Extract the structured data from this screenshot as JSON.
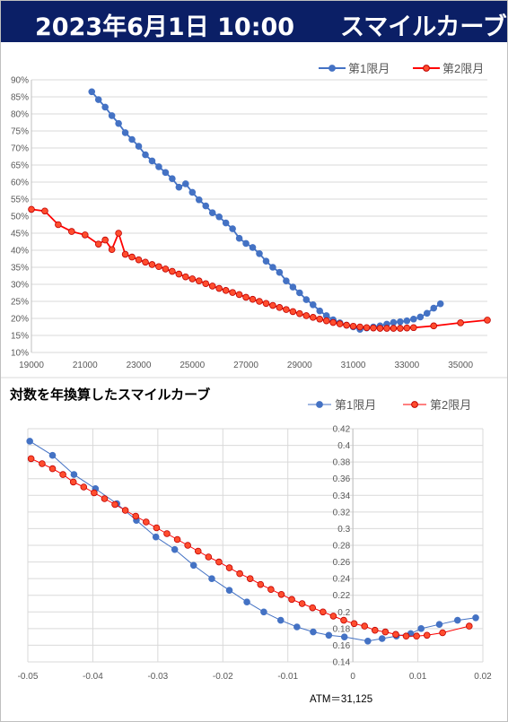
{
  "header": {
    "datetime": "2023年6月1日 10:00",
    "title": "スマイルカーブ"
  },
  "colors": {
    "series1": "#4472c4",
    "series2": "#ff0000",
    "series2_fill": "#ff4d2e",
    "header_bg": "#0b1f66"
  },
  "chart_data": [
    {
      "type": "line",
      "title": "",
      "xlabel": "",
      "ylabel": "",
      "xlim": [
        19000,
        36000
      ],
      "ylim": [
        0.1,
        0.9
      ],
      "x_ticks": [
        19000,
        21000,
        23000,
        25000,
        27000,
        29000,
        31000,
        33000,
        35000
      ],
      "y_ticks": [
        "10%",
        "15%",
        "20%",
        "25%",
        "30%",
        "35%",
        "40%",
        "45%",
        "50%",
        "55%",
        "60%",
        "65%",
        "70%",
        "75%",
        "80%",
        "85%",
        "90%"
      ],
      "legend": "top-right",
      "grid": "horizontal",
      "series": [
        {
          "name": "第1限月",
          "x": [
            21250,
            21500,
            21750,
            22000,
            22250,
            22500,
            22750,
            23000,
            23250,
            23500,
            23750,
            24000,
            24250,
            24500,
            24750,
            25000,
            25250,
            25500,
            25750,
            26000,
            26250,
            26500,
            26750,
            27000,
            27250,
            27500,
            27750,
            28000,
            28250,
            28500,
            28750,
            29000,
            29250,
            29500,
            29750,
            30000,
            30250,
            30500,
            30750,
            31000,
            31250,
            31500,
            31750,
            32000,
            32250,
            32500,
            32750,
            33000,
            33250,
            33500,
            33750,
            34000,
            34250
          ],
          "y": [
            0.865,
            0.842,
            0.82,
            0.795,
            0.772,
            0.745,
            0.725,
            0.705,
            0.68,
            0.662,
            0.645,
            0.628,
            0.61,
            0.585,
            0.595,
            0.57,
            0.548,
            0.53,
            0.51,
            0.498,
            0.48,
            0.463,
            0.435,
            0.42,
            0.408,
            0.39,
            0.368,
            0.35,
            0.335,
            0.31,
            0.292,
            0.275,
            0.255,
            0.24,
            0.222,
            0.208,
            0.196,
            0.187,
            0.18,
            0.175,
            0.168,
            0.172,
            0.175,
            0.178,
            0.183,
            0.188,
            0.19,
            0.193,
            0.198,
            0.204,
            0.215,
            0.23,
            0.243
          ]
        },
        {
          "name": "第2限月",
          "x": [
            19000,
            19500,
            20000,
            20500,
            21000,
            21500,
            21750,
            22000,
            22250,
            22500,
            22750,
            23000,
            23250,
            23500,
            23750,
            24000,
            24250,
            24500,
            24750,
            25000,
            25250,
            25500,
            25750,
            26000,
            26250,
            26500,
            26750,
            27000,
            27250,
            27500,
            27750,
            28000,
            28250,
            28500,
            28750,
            29000,
            29250,
            29500,
            29750,
            30000,
            30250,
            30500,
            30750,
            31000,
            31250,
            31500,
            31750,
            32000,
            32250,
            32500,
            32750,
            33000,
            33250,
            34000,
            35000,
            36000
          ],
          "y": [
            0.52,
            0.515,
            0.475,
            0.455,
            0.445,
            0.418,
            0.43,
            0.402,
            0.45,
            0.388,
            0.38,
            0.372,
            0.365,
            0.358,
            0.352,
            0.345,
            0.338,
            0.33,
            0.322,
            0.316,
            0.31,
            0.302,
            0.295,
            0.288,
            0.282,
            0.276,
            0.27,
            0.262,
            0.256,
            0.25,
            0.244,
            0.238,
            0.232,
            0.226,
            0.22,
            0.214,
            0.208,
            0.203,
            0.198,
            0.193,
            0.188,
            0.184,
            0.18,
            0.177,
            0.175,
            0.173,
            0.172,
            0.171,
            0.171,
            0.171,
            0.171,
            0.172,
            0.173,
            0.178,
            0.187,
            0.195
          ]
        }
      ]
    },
    {
      "type": "scatter",
      "title": "対数を年換算したスマイルカーブ",
      "xlabel": "",
      "ylabel": "",
      "xlim": [
        -0.05,
        0.02
      ],
      "ylim": [
        0.14,
        0.42
      ],
      "x_ticks": [
        "-0.05",
        "-0.04",
        "-0.03",
        "-0.02",
        "-0.01",
        "0",
        "0.01",
        "0.02"
      ],
      "y_ticks": [
        "0.14",
        "0.16",
        "0.18",
        "0.2",
        "0.22",
        "0.24",
        "0.26",
        "0.28",
        "0.3",
        "0.32",
        "0.34",
        "0.36",
        "0.38",
        "0.4",
        "0.42"
      ],
      "legend": "top-right",
      "grid": "both",
      "annotation": "ATM＝31,125",
      "series": [
        {
          "name": "第1限月",
          "x": [
            -0.0497,
            -0.0462,
            -0.0429,
            -0.0396,
            -0.0363,
            -0.0333,
            -0.0303,
            -0.0274,
            -0.0245,
            -0.0217,
            -0.019,
            -0.0163,
            -0.0137,
            -0.0111,
            -0.0086,
            -0.0061,
            -0.0037,
            -0.0013,
            0.0023,
            0.0045,
            0.0067,
            0.0089,
            0.0105,
            0.0133,
            0.0161,
            0.0189
          ],
          "y": [
            0.405,
            0.388,
            0.365,
            0.348,
            0.33,
            0.31,
            0.29,
            0.275,
            0.256,
            0.24,
            0.226,
            0.212,
            0.2,
            0.19,
            0.182,
            0.176,
            0.172,
            0.17,
            0.165,
            0.168,
            0.171,
            0.174,
            0.18,
            0.185,
            0.19,
            0.193
          ]
        },
        {
          "name": "第2限月",
          "x": [
            -0.0495,
            -0.0478,
            -0.0462,
            -0.0446,
            -0.043,
            -0.0414,
            -0.0398,
            -0.0382,
            -0.0366,
            -0.035,
            -0.0334,
            -0.0318,
            -0.0302,
            -0.0286,
            -0.027,
            -0.0254,
            -0.0238,
            -0.0222,
            -0.0206,
            -0.019,
            -0.0174,
            -0.0158,
            -0.0142,
            -0.0126,
            -0.011,
            -0.0094,
            -0.0078,
            -0.0062,
            -0.0046,
            -0.003,
            -0.0014,
            0.0002,
            0.0018,
            0.0034,
            0.005,
            0.0066,
            0.0082,
            0.0098,
            0.0114,
            0.0138,
            0.0179
          ],
          "y": [
            0.384,
            0.378,
            0.372,
            0.365,
            0.356,
            0.35,
            0.343,
            0.336,
            0.329,
            0.322,
            0.315,
            0.308,
            0.301,
            0.294,
            0.287,
            0.28,
            0.273,
            0.266,
            0.26,
            0.253,
            0.246,
            0.24,
            0.233,
            0.227,
            0.221,
            0.215,
            0.21,
            0.205,
            0.2,
            0.195,
            0.19,
            0.186,
            0.183,
            0.178,
            0.176,
            0.173,
            0.171,
            0.171,
            0.172,
            0.175,
            0.183
          ]
        }
      ]
    }
  ]
}
